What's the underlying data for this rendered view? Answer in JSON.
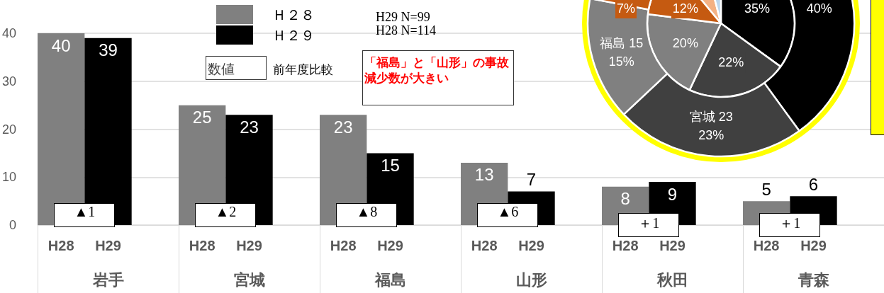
{
  "chart_data": [
    {
      "type": "bar",
      "categories": [
        "岩手",
        "宮城",
        "福島",
        "山形",
        "秋田",
        "青森"
      ],
      "series": [
        {
          "name": "Ｈ２８",
          "color": "#808080",
          "values": [
            40,
            25,
            23,
            13,
            8,
            5
          ]
        },
        {
          "name": "Ｈ２９",
          "color": "#000000",
          "values": [
            39,
            23,
            15,
            7,
            9,
            6
          ]
        }
      ],
      "ylim": [
        0,
        40
      ],
      "yticks": [
        0,
        10,
        20,
        30,
        40
      ],
      "grid": "y",
      "legend": "top left",
      "data_labels": true,
      "annotations": [
        "H29 N=99",
        "H28 N=114",
        "数値",
        "前年度比較",
        "「福島」と「山形」の事故減少数が大きい",
        "▲1",
        "▲2",
        "▲8",
        "▲6",
        "＋1",
        "＋1",
        "H28",
        "H29",
        "H28",
        "H29",
        "H28",
        "H29",
        "H28",
        "H29",
        "H28",
        "H29",
        "H28",
        "H29"
      ]
    },
    {
      "type": "donut",
      "categories": [
        null,
        null,
        null,
        null,
        null,
        null
      ],
      "colors": [
        "#000000",
        "#404040",
        "#808080",
        "#c55a11",
        "#f4b183",
        "#bdd7ee"
      ],
      "series": [
        {
          "values": [
            35,
            22,
            20,
            12,
            7,
            4
          ],
          "value_labels": [
            "35%",
            "22%",
            "20%",
            "12%",
            null,
            null
          ]
        },
        {
          "values": [
            40,
            23,
            15,
            7,
            null,
            null
          ],
          "value_labels": [
            "40%",
            "宮城 23\n23%",
            "福島 15\n15%",
            "7%",
            null,
            null
          ]
        }
      ]
    }
  ]
}
